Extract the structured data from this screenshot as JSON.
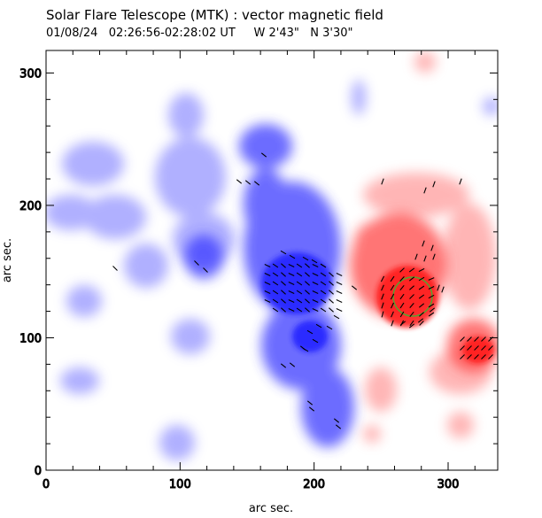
{
  "title": "Solar Flare Telescope (MTK) : vector magnetic field",
  "subtitle": "01/08/24   02:26:56-02:28:02 UT     W 2'43\"   N 3'30\"",
  "x_axis": {
    "label": "arc sec.",
    "ticks": [
      "0",
      "100",
      "200",
      "300"
    ],
    "range": [
      0,
      337
    ]
  },
  "y_axis": {
    "label": "arc sec.",
    "ticks": [
      "0",
      "100",
      "200",
      "300"
    ],
    "range": [
      0,
      317
    ]
  },
  "colors": {
    "positive": "#ff2a2a",
    "negative": "#2f2fff",
    "arrows": "#000000",
    "circle": "#5aa030"
  },
  "grid": false
}
